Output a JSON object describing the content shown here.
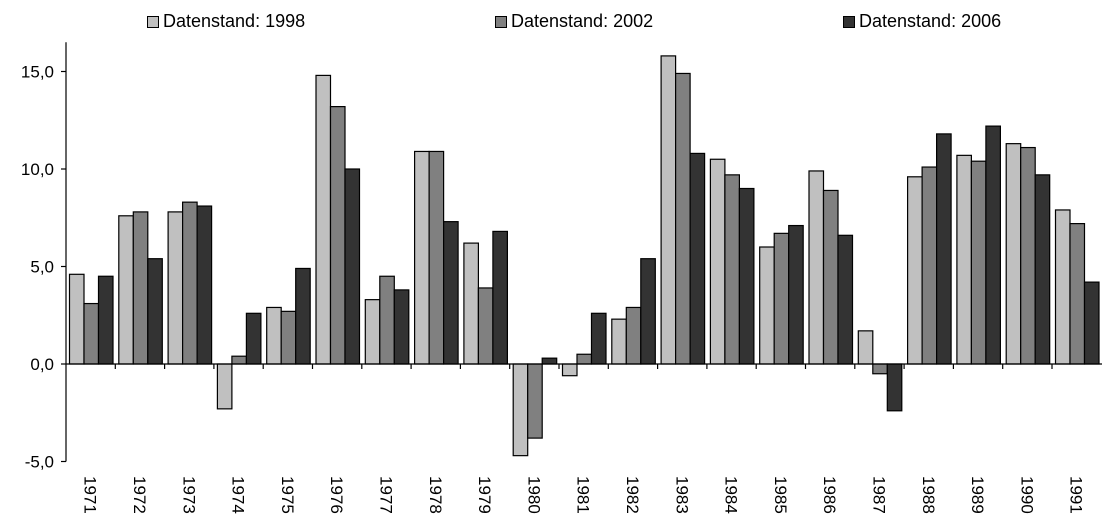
{
  "chart_data": {
    "type": "bar",
    "title": "",
    "xlabel": "",
    "ylabel": "",
    "ylim": [
      -5,
      16.5
    ],
    "y_ticks": [
      -5,
      0,
      5,
      10,
      15
    ],
    "y_tick_labels": [
      "-5,0",
      "0,0",
      "5,0",
      "10,0",
      "15,0"
    ],
    "grid": false,
    "legend_position": "top",
    "categories": [
      "1971",
      "1972",
      "1973",
      "1974",
      "1975",
      "1976",
      "1977",
      "1978",
      "1979",
      "1980",
      "1981",
      "1982",
      "1983",
      "1984",
      "1985",
      "1986",
      "1987",
      "1988",
      "1989",
      "1990",
      "1991"
    ],
    "series": [
      {
        "name": "Datenstand: 1998",
        "color": "#c0c0c0",
        "values": [
          4.6,
          7.6,
          7.8,
          -2.3,
          2.9,
          14.8,
          3.3,
          10.9,
          6.2,
          -4.7,
          -0.6,
          2.3,
          15.8,
          10.5,
          6.0,
          9.9,
          1.7,
          9.6,
          10.7,
          11.3,
          7.9
        ]
      },
      {
        "name": "Datenstand: 2002",
        "color": "#808080",
        "values": [
          3.1,
          7.8,
          8.3,
          0.4,
          2.7,
          13.2,
          4.5,
          10.9,
          3.9,
          -3.8,
          0.5,
          2.9,
          14.9,
          9.7,
          6.7,
          8.9,
          -0.5,
          10.1,
          10.4,
          11.1,
          7.2
        ]
      },
      {
        "name": "Datenstand: 2006",
        "color": "#333333",
        "values": [
          4.5,
          5.4,
          8.1,
          2.6,
          4.9,
          10.0,
          3.8,
          7.3,
          6.8,
          0.3,
          2.6,
          5.4,
          10.8,
          9.0,
          7.1,
          6.6,
          -2.4,
          11.8,
          12.2,
          9.7,
          4.2
        ]
      }
    ]
  }
}
